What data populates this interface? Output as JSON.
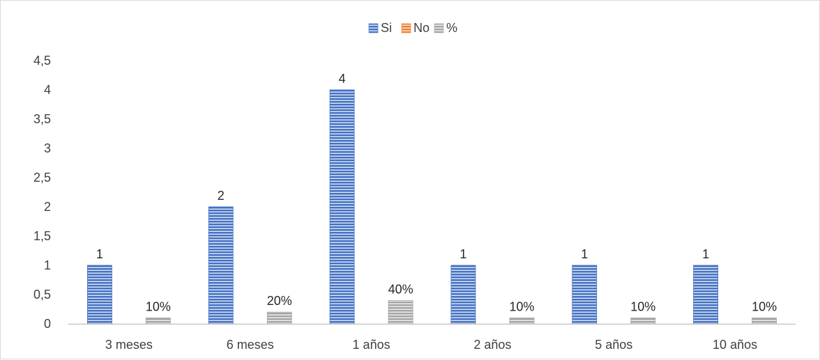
{
  "chart_data": {
    "type": "bar",
    "title": "",
    "xlabel": "",
    "ylabel": "",
    "categories": [
      "3 meses",
      "6 meses",
      "1 años",
      "2 años",
      "5 años",
      "10 años"
    ],
    "series": [
      {
        "name": "Si",
        "color": "#4472c4",
        "values": [
          1,
          2,
          4,
          1,
          1,
          1
        ],
        "labels": [
          "1",
          "2",
          "4",
          "1",
          "1",
          "1"
        ]
      },
      {
        "name": "No",
        "color": "#ed7d31",
        "values": [
          0,
          0,
          0,
          0,
          0,
          0
        ],
        "labels": [
          "",
          "",
          "",
          "",
          "",
          ""
        ]
      },
      {
        "name": "%",
        "color": "#a5a5a5",
        "values": [
          0.1,
          0.2,
          0.4,
          0.1,
          0.1,
          0.1
        ],
        "labels": [
          "10%",
          "20%",
          "40%",
          "10%",
          "10%",
          "10%"
        ]
      }
    ],
    "ylim": [
      0,
      4.5
    ],
    "yticks": [
      "0",
      "0,5",
      "1",
      "1,5",
      "2",
      "2,5",
      "3",
      "3,5",
      "4",
      "4,5"
    ],
    "grid": false,
    "legend_position": "top"
  }
}
